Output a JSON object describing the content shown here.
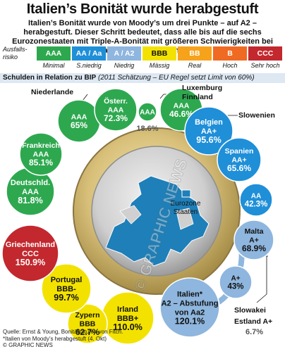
{
  "title": "Italien’s Bonität wurde herabgestuft",
  "subtitle": "Italien’s Bonität wurde von Moody’s um drei Punkte – auf A2 – herabgestuft. Dieser Schritt bedeutet, dass alle bis auf die sechs Eurozonestaaten mit Triple-A-Bonität mit größeren Schwierigkeiten bei Kreditaufnahme rechnen müssen",
  "risk_label": "Ausfalls-risiko",
  "legend": [
    {
      "code": "AAA",
      "text": "Minimal",
      "color": "#2ea84f"
    },
    {
      "code": "AA / Aa",
      "text": "S.niedrig",
      "color": "#1f8fd8"
    },
    {
      "code": "A / A2",
      "text": "Niedrig",
      "color": "#8eb6de"
    },
    {
      "code": "BBB",
      "text": "Mässig",
      "color": "#f3e200"
    },
    {
      "code": "BB",
      "text": "Real",
      "color": "#f7a21b"
    },
    {
      "code": "B",
      "text": "Hoch",
      "color": "#ef6a22"
    },
    {
      "code": "CCC",
      "text": "Sehr hoch",
      "color": "#c2282e"
    }
  ],
  "band_bold": "Schulden in Relation zu BIP",
  "band_italic": "(2011 Schätzung – EU Regel setzt Limit von 60%)",
  "coin_label": "Eurozone Staaten",
  "source": "Quelle: Ernst & Young, Bonitätsstufen von Fitch. *Italien von Moody’s herabgestuft (4. Okt)",
  "copyright": "© GRAPHIC NEWS",
  "watermark": "© GRAPHIC NEWS",
  "chart_data": {
    "type": "bubble",
    "title": "Schulden in Relation zu BIP",
    "unit": "%",
    "series": [
      {
        "country": "Niederlande",
        "rating": "AAA",
        "value": 65
      },
      {
        "country": "Österr.",
        "rating": "AAA",
        "value": 72.3
      },
      {
        "country": "",
        "rating": "AAA",
        "value": 18.6
      },
      {
        "country": "Finnland",
        "rating": "AAA",
        "value": 46.6
      },
      {
        "country": "Luxemburg",
        "rating": "",
        "value": null
      },
      {
        "country": "Belgien",
        "rating": "AA+",
        "value": 95.6
      },
      {
        "country": "Slowenien",
        "rating": "",
        "value": null
      },
      {
        "country": "Spanien",
        "rating": "AA+",
        "value": 65.6
      },
      {
        "country": "",
        "rating": "AA",
        "value": 42.3
      },
      {
        "country": "Malta",
        "rating": "A+",
        "value": 68.9
      },
      {
        "country": "",
        "rating": "A+",
        "value": 43
      },
      {
        "country": "Slowakei",
        "rating": "",
        "value": null
      },
      {
        "country": "Estland",
        "rating": "A+",
        "value": 6.7
      },
      {
        "country": "Italien*",
        "rating": "A2 – Abstufung von Aa2",
        "value": 120.1
      },
      {
        "country": "Irland",
        "rating": "BBB+",
        "value": 110
      },
      {
        "country": "Zypern",
        "rating": "BBB",
        "value": 62.7
      },
      {
        "country": "Portugal",
        "rating": "BBB-",
        "value": 99.7
      },
      {
        "country": "Griechenland",
        "rating": "CCC",
        "value": 150.9
      },
      {
        "country": "Deutschld.",
        "rating": "AAA",
        "value": 81.8
      },
      {
        "country": "Frankreich",
        "rating": "AAA",
        "value": 85.1
      }
    ],
    "value_labels": [
      "65%",
      "72.3%",
      "18.6%",
      "46.6%",
      "95.6%",
      "65.6%",
      "42.3%",
      "68.9%",
      "43%",
      "6.7%",
      "120.1%",
      "110.0%",
      "62.7%",
      "99.7%",
      "150.9%",
      "81.8%",
      "85.1%"
    ]
  }
}
